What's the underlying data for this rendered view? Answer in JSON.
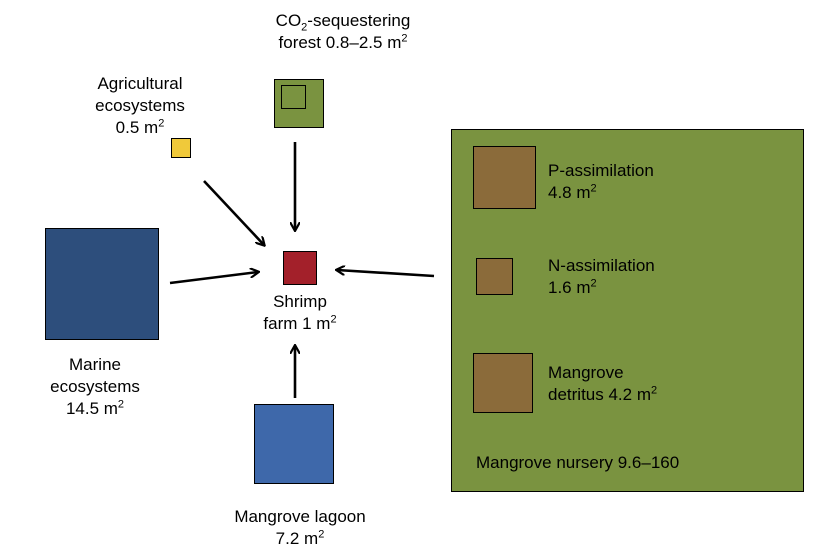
{
  "nodes": {
    "co2_forest": {
      "line1_prefix": "CO",
      "line1_sub": "2",
      "line1_suffix": "-sequestering",
      "line2": "forest 0.8–2.5 m",
      "sup": "2",
      "color": "#7a9340"
    },
    "agricultural": {
      "line1": "Agricultural",
      "line2": "ecosystems",
      "line3": "0.5 m",
      "sup": "2",
      "color": "#f0c93a"
    },
    "shrimp": {
      "line1": "Shrimp",
      "line2": "farm 1 m",
      "sup": "2",
      "color": "#a3202a"
    },
    "marine": {
      "line1": "Marine",
      "line2": "ecosystems",
      "line3": "14.5 m",
      "sup": "2",
      "color": "#2d4e7c"
    },
    "lagoon": {
      "line1": "Mangrove lagoon",
      "line2": "7.2 m",
      "sup": "2",
      "color": "#3e68aa"
    }
  },
  "nursery": {
    "label": "Mangrove nursery  9.6–160",
    "color": "#7a9340",
    "items": [
      {
        "line1": "P-assimilation",
        "line2": "4.8 m",
        "sup": "2",
        "color": "#8b6b3a"
      },
      {
        "line1": "N-assimilation",
        "line2": "1.6 m",
        "sup": "2",
        "color": "#8b6b3a"
      },
      {
        "line1": "Mangrove",
        "line2": "detritus 4.2 m",
        "sup": "2",
        "color": "#8b6b3a"
      }
    ]
  }
}
